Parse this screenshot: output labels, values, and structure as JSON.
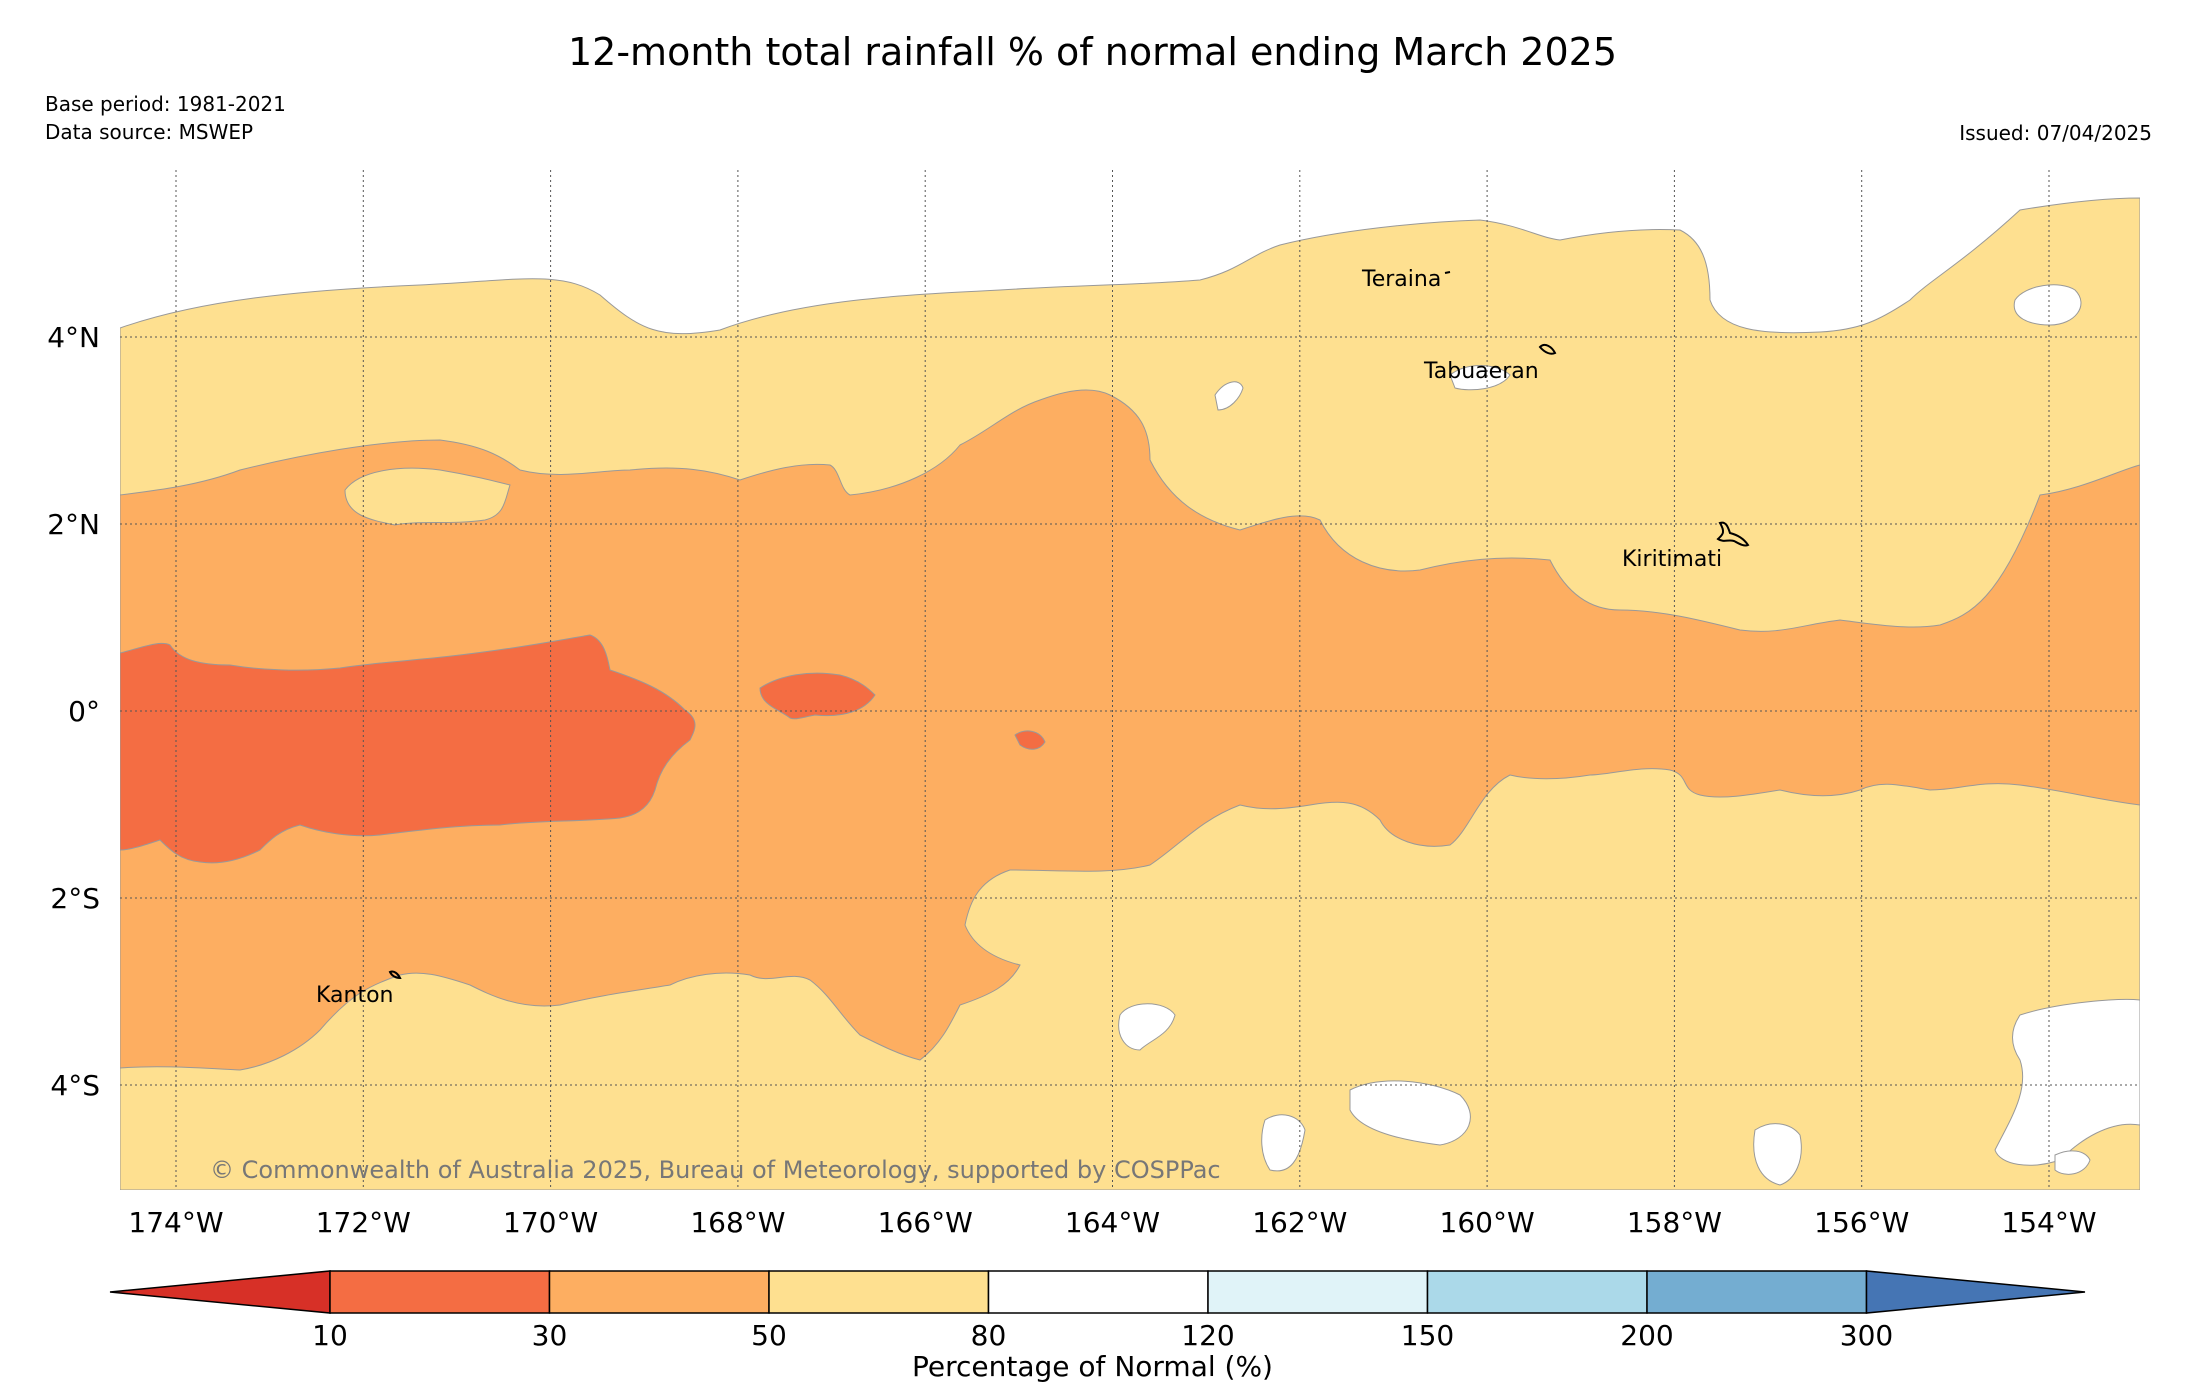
{
  "title": "12-month total rainfall % of normal ending March 2025",
  "base_period": "Base period: 1981-2021",
  "data_source": "Data source: MSWEP",
  "issued": "Issued: 07/04/2025",
  "copyright": "© Commonwealth of Australia 2025, Bureau of Meteorology, supported by COSPPac",
  "map": {
    "lon_ticks": [
      "174°W",
      "172°W",
      "170°W",
      "168°W",
      "166°W",
      "164°W",
      "162°W",
      "160°W",
      "158°W",
      "156°W",
      "154°W"
    ],
    "lat_ticks": [
      "4°N",
      "2°N",
      "0°",
      "2°S",
      "4°S"
    ],
    "places": [
      {
        "name": "Teraina"
      },
      {
        "name": "Tabuaeran"
      },
      {
        "name": "Kiritimati"
      },
      {
        "name": "Kanton"
      }
    ],
    "grid": "dotted"
  },
  "colorbar": {
    "label": "Percentage of Normal (%)",
    "ticks": [
      "10",
      "30",
      "50",
      "80",
      "120",
      "150",
      "200",
      "300"
    ],
    "colors": {
      "below_10": "#d73027",
      "10_30": "#f46d43",
      "30_50": "#fdae61",
      "50_80": "#fee090",
      "80_120": "#ffffff",
      "120_150": "#e0f3f8",
      "150_200": "#abd9e9",
      "200_300": "#74add1",
      "above_300": "#4575b4"
    }
  }
}
